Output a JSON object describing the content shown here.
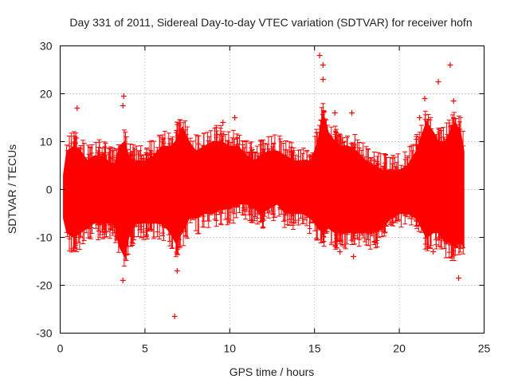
{
  "chart_data": {
    "type": "scatter",
    "title": "Day 331 of 2011, Sidereal Day-to-day VTEC variation (SDTVAR) for receiver hofn",
    "xlabel": "GPS time / hours",
    "ylabel": "SDTVAR / TECUs",
    "xlim": [
      0,
      25
    ],
    "ylim": [
      -30,
      30
    ],
    "xticks": [
      "0",
      "5",
      "10",
      "15",
      "20",
      "25"
    ],
    "yticks": [
      "-30",
      "-20",
      "-10",
      "0",
      "10",
      "20",
      "30"
    ],
    "grid": true,
    "series": [
      {
        "name": "SDTVAR",
        "color": "#ff0000",
        "marker": "plus",
        "x_range": [
          0.2,
          23.8
        ],
        "envelope": [
          [
            0.2,
            -6,
            3
          ],
          [
            0.4,
            -9,
            8
          ],
          [
            0.8,
            -10,
            9
          ],
          [
            1.2,
            -9,
            8
          ],
          [
            1.6,
            -8,
            6
          ],
          [
            2.0,
            -7,
            7
          ],
          [
            2.4,
            -7,
            7
          ],
          [
            2.8,
            -7,
            6
          ],
          [
            3.2,
            -7,
            5
          ],
          [
            3.5,
            -12,
            9
          ],
          [
            3.8,
            -14,
            10
          ],
          [
            4.1,
            -9,
            6
          ],
          [
            4.5,
            -7,
            6
          ],
          [
            5.0,
            -7,
            6
          ],
          [
            5.5,
            -7,
            7
          ],
          [
            6.0,
            -7,
            9
          ],
          [
            6.5,
            -9,
            9
          ],
          [
            6.8,
            -11,
            10
          ],
          [
            7.2,
            -9,
            13
          ],
          [
            7.6,
            -6,
            10
          ],
          [
            8.0,
            -6,
            8
          ],
          [
            8.5,
            -5,
            9
          ],
          [
            9.0,
            -5,
            10
          ],
          [
            9.5,
            -4,
            10
          ],
          [
            10.0,
            -4,
            9
          ],
          [
            10.5,
            -3,
            9
          ],
          [
            11.0,
            -3,
            7
          ],
          [
            11.5,
            -4,
            6
          ],
          [
            11.8,
            -5,
            7
          ],
          [
            12.3,
            -4,
            8
          ],
          [
            12.8,
            -3,
            8
          ],
          [
            13.3,
            -5,
            7
          ],
          [
            13.8,
            -5,
            6
          ],
          [
            14.3,
            -5,
            6
          ],
          [
            14.8,
            -6,
            6
          ],
          [
            15.2,
            -8,
            10
          ],
          [
            15.5,
            -9,
            16
          ],
          [
            15.8,
            -8,
            12
          ],
          [
            16.2,
            -9,
            10
          ],
          [
            16.6,
            -9,
            9
          ],
          [
            17.0,
            -9,
            9
          ],
          [
            17.5,
            -9,
            8
          ],
          [
            18.0,
            -9,
            6
          ],
          [
            18.5,
            -9,
            5
          ],
          [
            19.0,
            -8,
            4
          ],
          [
            19.5,
            -6,
            4
          ],
          [
            20.0,
            -5,
            4
          ],
          [
            20.5,
            -5,
            5
          ],
          [
            21.0,
            -6,
            8
          ],
          [
            21.3,
            -8,
            11
          ],
          [
            21.6,
            -10,
            14
          ],
          [
            22.0,
            -9,
            12
          ],
          [
            22.3,
            -9,
            10
          ],
          [
            22.7,
            -11,
            10
          ],
          [
            23.0,
            -11,
            12
          ],
          [
            23.3,
            -12,
            14
          ],
          [
            23.6,
            -11,
            12
          ],
          [
            23.8,
            -12,
            8
          ]
        ],
        "outliers": [
          [
            1.0,
            17
          ],
          [
            3.7,
            17.5
          ],
          [
            3.75,
            19.5
          ],
          [
            3.7,
            -19
          ],
          [
            6.75,
            -26.5
          ],
          [
            6.9,
            -17
          ],
          [
            9.6,
            14
          ],
          [
            10.3,
            15
          ],
          [
            15.3,
            28
          ],
          [
            15.5,
            26
          ],
          [
            15.5,
            23
          ],
          [
            16.2,
            16
          ],
          [
            16.5,
            -13
          ],
          [
            17.2,
            16
          ],
          [
            17.3,
            -14
          ],
          [
            22.0,
            -13
          ],
          [
            22.3,
            22.5
          ],
          [
            23.0,
            26
          ],
          [
            23.2,
            18.5
          ],
          [
            23.5,
            -18.5
          ],
          [
            21.5,
            19
          ],
          [
            21.2,
            15
          ]
        ]
      }
    ]
  }
}
